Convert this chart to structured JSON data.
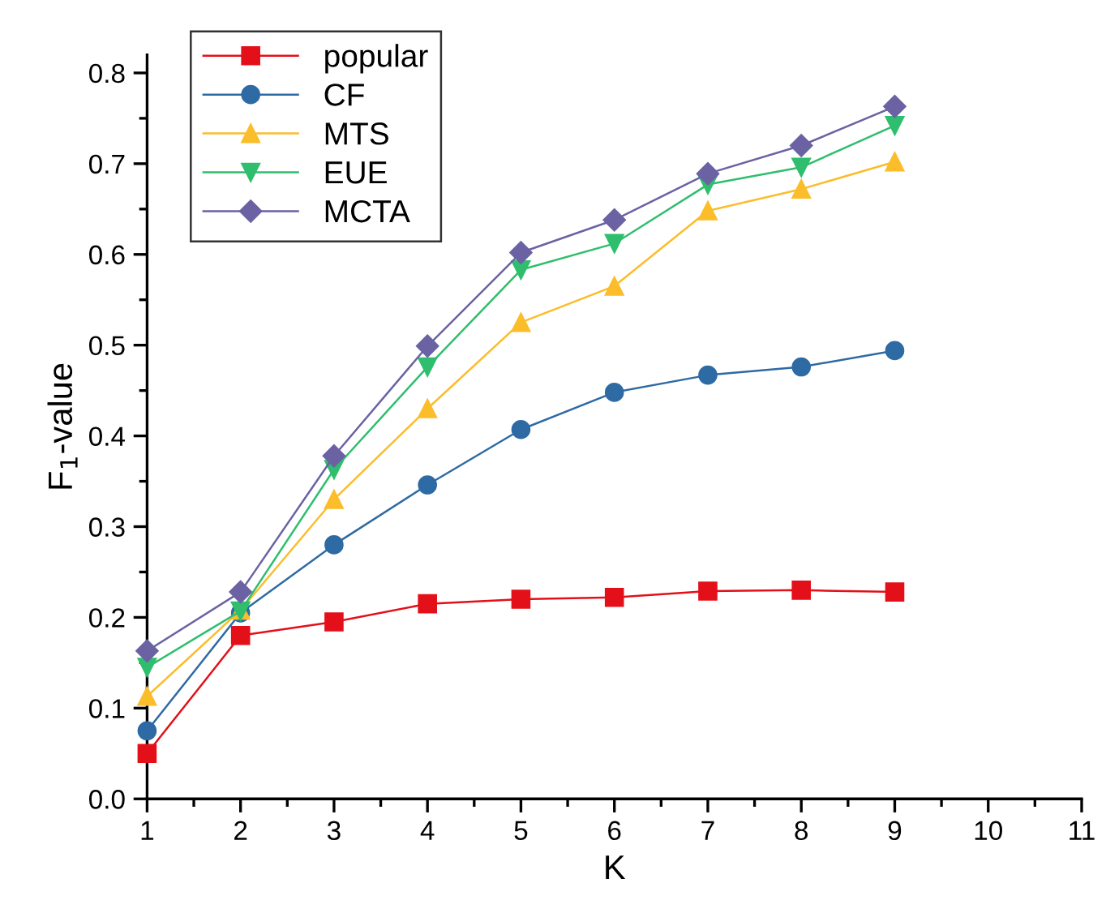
{
  "chart_data": {
    "type": "line",
    "xlabel": "K",
    "ylabel": "F$_{1}$-value",
    "x": [
      1,
      2,
      3,
      4,
      5,
      6,
      7,
      8,
      9
    ],
    "series": [
      {
        "name": "popular",
        "color": "#e3101a",
        "marker": "square",
        "values": [
          0.05,
          0.18,
          0.195,
          0.215,
          0.22,
          0.222,
          0.229,
          0.23,
          0.228
        ]
      },
      {
        "name": "CF",
        "color": "#2e6aa3",
        "marker": "circle",
        "values": [
          0.075,
          0.205,
          0.28,
          0.346,
          0.407,
          0.448,
          0.467,
          0.476,
          0.494
        ]
      },
      {
        "name": "MTS",
        "color": "#fbbd2a",
        "marker": "triangle",
        "values": [
          0.113,
          0.208,
          0.33,
          0.43,
          0.525,
          0.565,
          0.648,
          0.672,
          0.702
        ]
      },
      {
        "name": "EUE",
        "color": "#2fbe6e",
        "marker": "triangle_down",
        "values": [
          0.145,
          0.207,
          0.363,
          0.476,
          0.583,
          0.612,
          0.677,
          0.696,
          0.742
        ]
      },
      {
        "name": "MCTA",
        "color": "#6b62a3",
        "marker": "diamond",
        "values": [
          0.163,
          0.228,
          0.378,
          0.499,
          0.602,
          0.638,
          0.689,
          0.72,
          0.763
        ]
      }
    ],
    "xlim": [
      1,
      11
    ],
    "xticks": [
      1,
      2,
      3,
      4,
      5,
      6,
      7,
      8,
      9,
      10,
      11
    ],
    "ylim": [
      0,
      0.82
    ],
    "yticks": [
      {
        "value": 0,
        "label": "0.0"
      },
      0.1,
      0.2,
      0.3,
      0.4,
      0.5,
      0.6,
      0.7,
      0.8
    ],
    "grid": false,
    "legend": "top left",
    "line_style": "solid"
  }
}
